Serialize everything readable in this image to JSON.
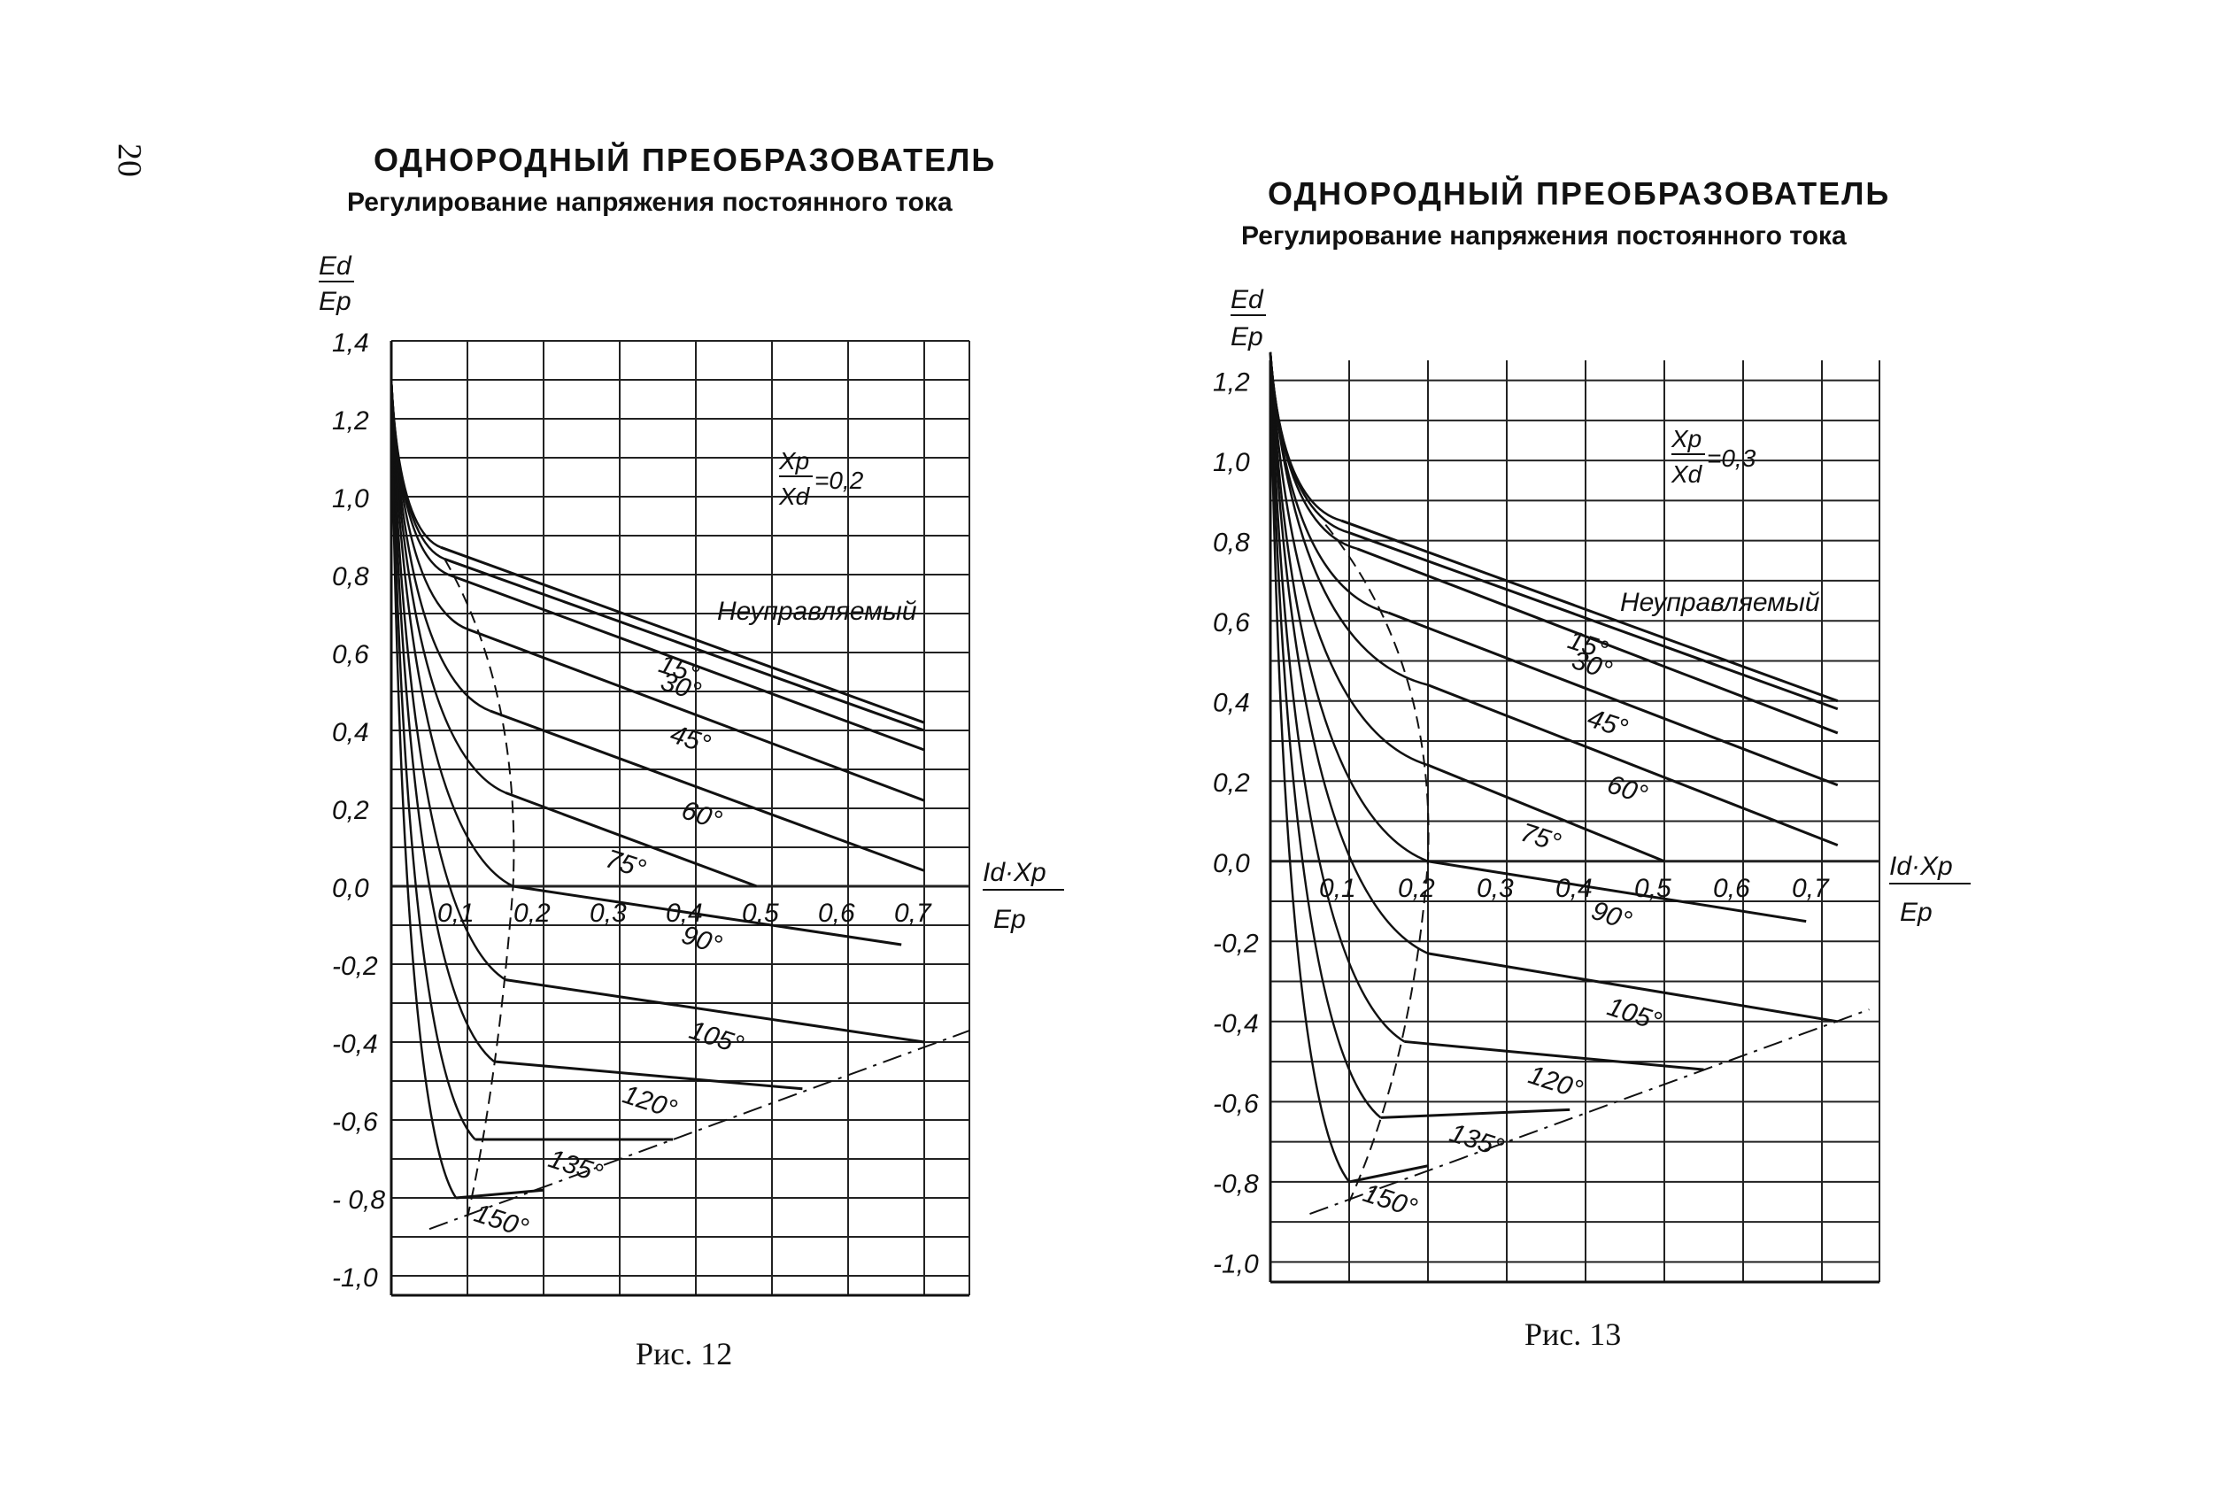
{
  "page": {
    "number": "20"
  },
  "panels": [
    {
      "title": "ОДНОРОДНЫЙ ПРЕОБРАЗОВАТЕЛЬ",
      "subtitle": "Регулирование напряжения постоянного тока",
      "caption": "Рис. 12",
      "ylabel_num": "Ed",
      "ylabel_den": "Ep",
      "xlabel_num": "Id·Xp",
      "xlabel_den": "Ep",
      "param_num": "Xp",
      "param_den": "Xd",
      "param_value": "=0,2",
      "uncontrolled_label": "Неуправляемый",
      "yticks": [
        "1,4",
        "1,2",
        "1,0",
        "0,8",
        "0,6",
        "0,4",
        "0,2",
        "0,0",
        "-0,2",
        "-0,4",
        "-0,6",
        "- 0,8",
        "-1,0"
      ],
      "xticks": [
        "0,1",
        "0,2",
        "0,3",
        "0,4",
        "0,5",
        "0,6",
        "0,7"
      ],
      "angle_labels": [
        "15°",
        "30°",
        "45°",
        "60°",
        "75°",
        "90°",
        "105°",
        "120°",
        "135°",
        "150°"
      ]
    },
    {
      "title": "ОДНОРОДНЫЙ ПРЕОБРАЗОВАТЕЛЬ",
      "subtitle": "Регулирование напряжения постоянного тока",
      "caption": "Рис. 13",
      "ylabel_num": "Ed",
      "ylabel_den": "Ep",
      "xlabel_num": "Id·Xp",
      "xlabel_den": "Ep",
      "param_num": "Xp",
      "param_den": "Xd",
      "param_value": "=0,3",
      "uncontrolled_label": "Неуправляемый",
      "yticks": [
        "1,2",
        "1,0",
        "0,8",
        "0,6",
        "0,4",
        "0,2",
        "0,0",
        "-0,2",
        "-0,4",
        "-0,6",
        "-0,8",
        "-1,0"
      ],
      "xticks": [
        "0,1",
        "0,2",
        "0,3",
        "0,4",
        "0,5",
        "0,6",
        "0,7"
      ],
      "angle_labels": [
        "15°",
        "30°",
        "45°",
        "60°",
        "75°",
        "90°",
        "105°",
        "120°",
        "135°",
        "150°"
      ]
    }
  ],
  "chart_data": [
    {
      "type": "line",
      "title": "ОДНОРОДНЫЙ ПРЕОБРАЗОВАТЕЛЬ",
      "xlabel": "Id·Xp/Ep",
      "ylabel": "Ed/Ep",
      "xlim": [
        0,
        0.75
      ],
      "ylim": [
        -1.05,
        1.4
      ],
      "grid": true,
      "parameter": "Xp/Xd = 0,2",
      "series": [
        {
          "name": "Неуправляемый",
          "x": [
            0.065,
            0.7
          ],
          "y": [
            0.87,
            0.42
          ]
        },
        {
          "name": "15°",
          "x": [
            0.07,
            0.7
          ],
          "y": [
            0.84,
            0.4
          ]
        },
        {
          "name": "30°",
          "x": [
            0.075,
            0.7
          ],
          "y": [
            0.8,
            0.35
          ]
        },
        {
          "name": "45°",
          "x": [
            0.1,
            0.7
          ],
          "y": [
            0.66,
            0.22
          ]
        },
        {
          "name": "60°",
          "x": [
            0.13,
            0.7
          ],
          "y": [
            0.45,
            0.04
          ]
        },
        {
          "name": "75°",
          "x": [
            0.15,
            0.48
          ],
          "y": [
            0.24,
            0.0
          ]
        },
        {
          "name": "90°",
          "x": [
            0.16,
            0.67
          ],
          "y": [
            0.0,
            -0.15
          ]
        },
        {
          "name": "105°",
          "x": [
            0.15,
            0.7
          ],
          "y": [
            -0.24,
            -0.4
          ]
        },
        {
          "name": "120°",
          "x": [
            0.135,
            0.54
          ],
          "y": [
            -0.45,
            -0.52
          ]
        },
        {
          "name": "135°",
          "x": [
            0.11,
            0.37
          ],
          "y": [
            -0.65,
            -0.65
          ]
        },
        {
          "name": "150°",
          "x": [
            0.085,
            0.2
          ],
          "y": [
            -0.8,
            -0.78
          ]
        }
      ]
    },
    {
      "type": "line",
      "title": "ОДНОРОДНЫЙ ПРЕОБРАЗОВАТЕЛЬ",
      "xlabel": "Id·Xp/Ep",
      "ylabel": "Ed/Ep",
      "xlim": [
        0,
        0.75
      ],
      "ylim": [
        -1.05,
        1.25
      ],
      "grid": true,
      "parameter": "Xp/Xd = 0,3",
      "series": [
        {
          "name": "Неуправляемый",
          "x": [
            0.09,
            0.72
          ],
          "y": [
            0.85,
            0.4
          ]
        },
        {
          "name": "15°",
          "x": [
            0.1,
            0.72
          ],
          "y": [
            0.82,
            0.38
          ]
        },
        {
          "name": "30°",
          "x": [
            0.11,
            0.72
          ],
          "y": [
            0.78,
            0.32
          ]
        },
        {
          "name": "45°",
          "x": [
            0.15,
            0.72
          ],
          "y": [
            0.62,
            0.19
          ]
        },
        {
          "name": "60°",
          "x": [
            0.2,
            0.72
          ],
          "y": [
            0.44,
            0.04
          ]
        },
        {
          "name": "75°",
          "x": [
            0.2,
            0.5
          ],
          "y": [
            0.24,
            0.0
          ]
        },
        {
          "name": "90°",
          "x": [
            0.2,
            0.68
          ],
          "y": [
            0.0,
            -0.15
          ]
        },
        {
          "name": "105°",
          "x": [
            0.2,
            0.72
          ],
          "y": [
            -0.23,
            -0.4
          ]
        },
        {
          "name": "120°",
          "x": [
            0.17,
            0.55
          ],
          "y": [
            -0.45,
            -0.52
          ]
        },
        {
          "name": "135°",
          "x": [
            0.14,
            0.38
          ],
          "y": [
            -0.64,
            -0.62
          ]
        },
        {
          "name": "150°",
          "x": [
            0.1,
            0.2
          ],
          "y": [
            -0.8,
            -0.76
          ]
        }
      ]
    }
  ]
}
